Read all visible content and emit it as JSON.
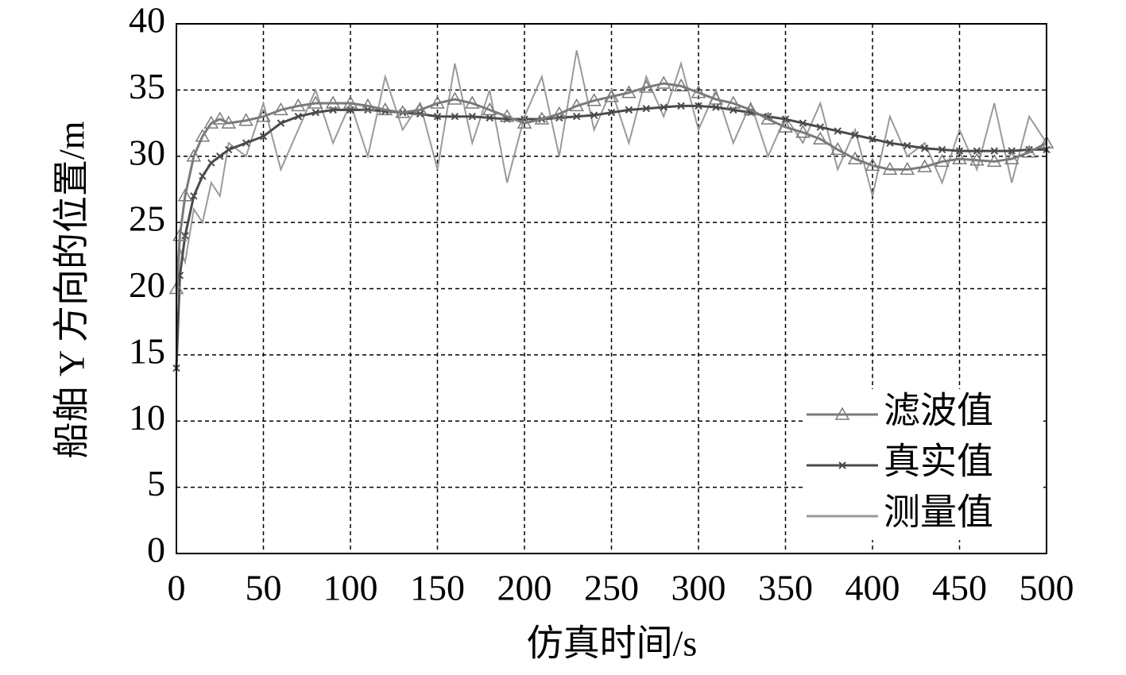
{
  "chart_data": {
    "type": "line",
    "x_label": "仿真时间/s",
    "y_label": "船舶 Y 方向的位置/m",
    "x": [
      0,
      2,
      5,
      10,
      15,
      20,
      25,
      30,
      40,
      50,
      60,
      70,
      80,
      90,
      100,
      110,
      120,
      130,
      140,
      150,
      160,
      170,
      180,
      190,
      200,
      210,
      220,
      230,
      240,
      250,
      260,
      270,
      280,
      290,
      300,
      310,
      320,
      330,
      340,
      350,
      360,
      370,
      380,
      390,
      400,
      410,
      420,
      430,
      440,
      450,
      460,
      470,
      480,
      490,
      500
    ],
    "series": [
      {
        "name": "滤波值",
        "color": "#7a7a7a",
        "marker": "triangle",
        "values": [
          20,
          24,
          27,
          30,
          31.5,
          32.5,
          32.8,
          32.5,
          32.7,
          33,
          33.5,
          33.8,
          34,
          34,
          34,
          33.8,
          33.5,
          33.3,
          33.5,
          34,
          34.3,
          34,
          33.5,
          33,
          32.5,
          32.8,
          33.2,
          33.8,
          34.2,
          34.5,
          34.8,
          35.2,
          35.5,
          35.3,
          34.8,
          34.3,
          34,
          33.5,
          32.8,
          32.2,
          31.8,
          31.3,
          30.5,
          29.8,
          29.3,
          29,
          29,
          29.2,
          29.6,
          29.8,
          29.7,
          29.6,
          29.8,
          30.3,
          31
        ]
      },
      {
        "name": "真实值",
        "color": "#4a4a4a",
        "marker": "x",
        "values": [
          14,
          21,
          24,
          27,
          28.5,
          29.5,
          30,
          30.5,
          31,
          31.5,
          32.5,
          33,
          33.3,
          33.5,
          33.5,
          33.5,
          33.4,
          33.3,
          33.2,
          33,
          33,
          33,
          32.9,
          32.8,
          32.8,
          32.8,
          32.9,
          33,
          33.1,
          33.3,
          33.5,
          33.6,
          33.7,
          33.8,
          33.8,
          33.7,
          33.5,
          33.3,
          33,
          32.8,
          32.5,
          32.2,
          31.9,
          31.6,
          31.3,
          31,
          30.8,
          30.6,
          30.5,
          30.4,
          30.4,
          30.4,
          30.4,
          30.5,
          30.5
        ]
      },
      {
        "name": "测量值",
        "color": "#9a9a9a",
        "marker": "none",
        "values": [
          19,
          23,
          22,
          26,
          25,
          28,
          27,
          31,
          30,
          34,
          29,
          32,
          35,
          31,
          34,
          30,
          36,
          32,
          34,
          29,
          37,
          31,
          35,
          28,
          33,
          36,
          30,
          38,
          32,
          35,
          31,
          36,
          33,
          37,
          32,
          35,
          31,
          34,
          30,
          33,
          31,
          34,
          29,
          32,
          27,
          33,
          30,
          31,
          28,
          32,
          29,
          34,
          28,
          33,
          31
        ]
      }
    ],
    "xlim": [
      0,
      500
    ],
    "xticks": [
      0,
      50,
      100,
      150,
      200,
      250,
      300,
      350,
      400,
      450,
      500
    ],
    "ylim": [
      0,
      40
    ],
    "yticks": [
      0,
      5,
      10,
      15,
      20,
      25,
      30,
      35,
      40
    ],
    "grid": true,
    "legend": "lower right"
  }
}
